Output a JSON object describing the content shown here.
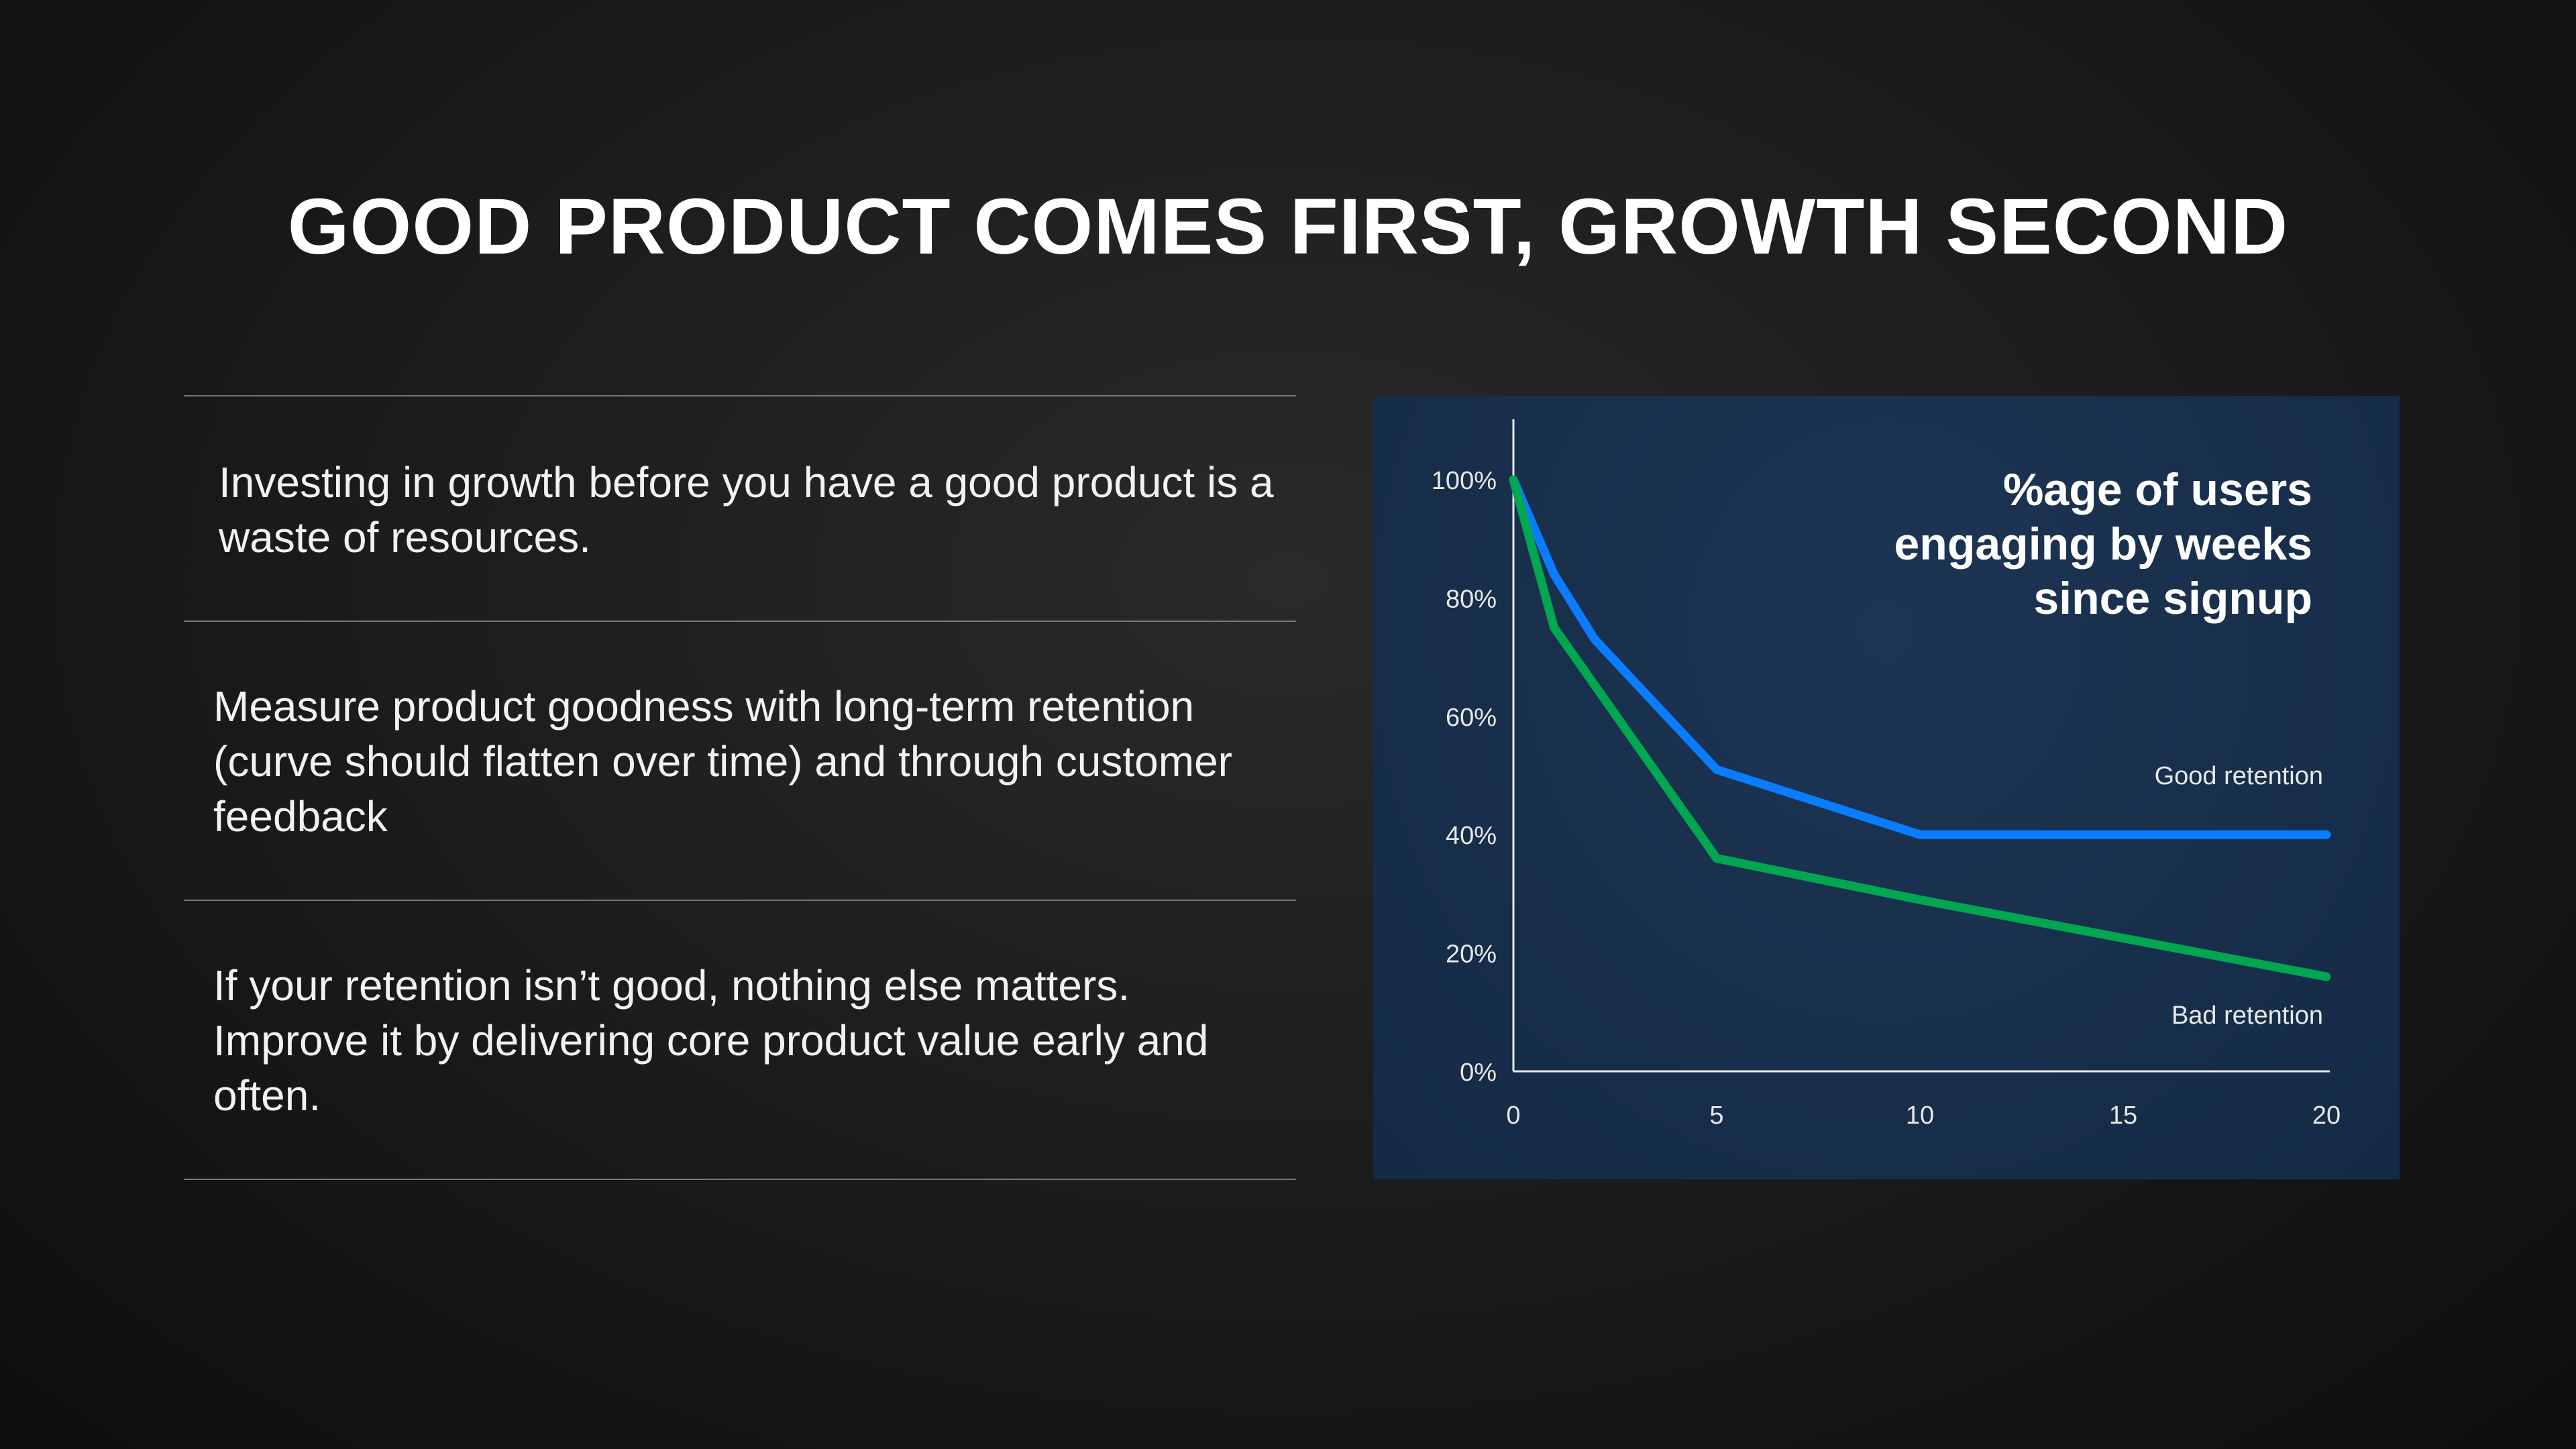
{
  "slide": {
    "title": "GOOD PRODUCT COMES FIRST, GROWTH SECOND",
    "points": [
      "Investing in growth before you  have a good product is a waste of  resources.",
      "Measure product goodness with  long-term retention (curve should  flatten over time) and through customer feedback",
      "If your retention isn’t good,  nothing else matters. Improve it  by delivering core product value  early and often."
    ]
  },
  "chart_data": {
    "type": "line",
    "title": [
      "%age of users",
      "engaging by weeks",
      "since signup"
    ],
    "xlabel": "",
    "ylabel": "",
    "xlim": [
      0,
      20
    ],
    "ylim": [
      0,
      100
    ],
    "xticks": [
      "0",
      "5",
      "10",
      "15",
      "20"
    ],
    "yticks": [
      "0%",
      "20%",
      "40%",
      "60%",
      "80%",
      "100%"
    ],
    "grid": false,
    "series": [
      {
        "name": "Good retention",
        "color": "#0a7cff",
        "x": [
          0,
          1,
          2,
          5,
          10,
          20
        ],
        "y": [
          100,
          84,
          73,
          51,
          40,
          40
        ]
      },
      {
        "name": "Bad retention",
        "color": "#00a650",
        "x": [
          0,
          1,
          5,
          10,
          20
        ],
        "y": [
          100,
          75,
          36,
          29,
          16
        ]
      }
    ]
  }
}
